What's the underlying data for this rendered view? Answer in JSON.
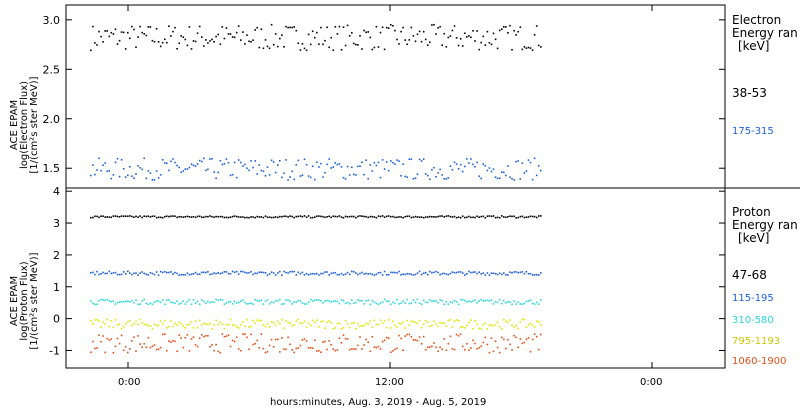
{
  "chart_data": [
    {
      "type": "scatter",
      "panel": "electron",
      "ylabel_lines": [
        "ACE EPAM",
        "log(Electron Flux)",
        "[1/(cm²s ster MeV)]"
      ],
      "yticks": [
        "1.5",
        "2.0",
        "2.5",
        "3.0"
      ],
      "ylim": [
        1.3,
        3.15
      ],
      "legend_title": [
        "Electron",
        "Energy ran"
      ],
      "legend_unit": "[keV]",
      "series": [
        {
          "name": "38-53",
          "color": "#000000",
          "center": 2.83,
          "spread": 0.13,
          "label_color": "#000000"
        },
        {
          "name": "175-315",
          "color": "#1f5fd6",
          "center": 1.5,
          "spread": 0.11,
          "label_color": "#1f5fd6"
        }
      ]
    },
    {
      "type": "scatter",
      "panel": "proton",
      "ylabel_lines": [
        "ACE EPAM",
        "log(Proton Flux)",
        "[1/(cm²s ster MeV)]"
      ],
      "yticks": [
        "-1",
        "0",
        "1",
        "2",
        "3",
        "4"
      ],
      "ylim": [
        -1.55,
        4.1
      ],
      "legend_title": [
        "Proton",
        "Energy ran"
      ],
      "legend_unit": "[keV]",
      "series": [
        {
          "name": "47-68",
          "color": "#000000",
          "center": 3.22,
          "spread": 0.03,
          "label_color": "#000000"
        },
        {
          "name": "115-195",
          "color": "#1f5fd6",
          "center": 1.45,
          "spread": 0.06,
          "label_color": "#1f5fd6"
        },
        {
          "name": "310-580",
          "color": "#2ad6d6",
          "center": 0.55,
          "spread": 0.08,
          "label_color": "#2ad6d6"
        },
        {
          "name": "795-1193",
          "color": "#e0e600",
          "center": -0.15,
          "spread": 0.15,
          "label_color": "#c8c800"
        },
        {
          "name": "1060-1900",
          "color": "#e0501a",
          "center": -0.75,
          "spread": 0.3,
          "label_color": "#e0501a"
        }
      ]
    }
  ],
  "xaxis": {
    "ticks": [
      "0:00",
      "12:00",
      "0:00"
    ],
    "xlabel": "hours:minutes, Aug.  3, 2019 - Aug.  5, 2019"
  }
}
